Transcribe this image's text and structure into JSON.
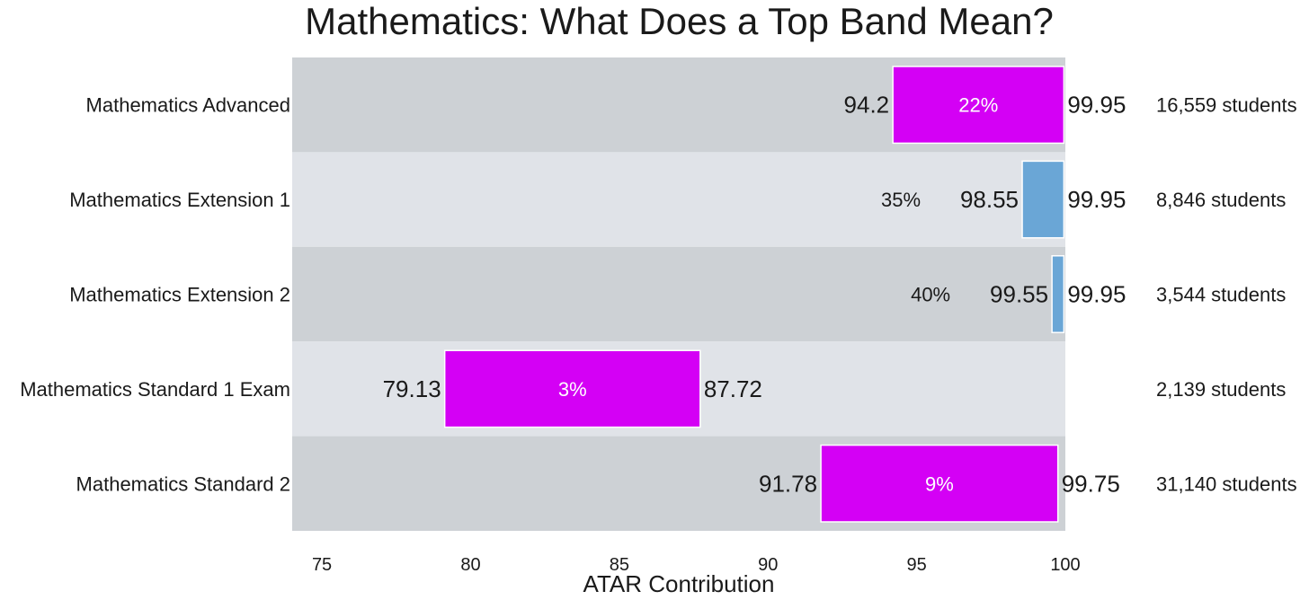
{
  "chart_data": {
    "type": "bar",
    "subtype": "floating-range",
    "title": "Mathematics: What Does a Top Band Mean?",
    "xlabel": "ATAR Contribution",
    "ylabel": "",
    "xlim": [
      74,
      100
    ],
    "xticks": [
      75,
      80,
      85,
      90,
      95,
      100
    ],
    "xtick_labels": [
      "75",
      "80",
      "85",
      "90",
      "95",
      "100"
    ],
    "grid": false,
    "legend": "none",
    "categories": [
      "Mathematics Advanced",
      "Mathematics Extension 1",
      "Mathematics Extension 2",
      "Mathematics Standard 1 Exam",
      "Mathematics Standard 2"
    ],
    "bands": [
      {
        "category": "Mathematics Advanced",
        "start": 94.2,
        "end": 99.95,
        "start_label": "94.2",
        "end_label": "99.95",
        "percent_label": "22%",
        "percent_inside": true,
        "color": "#d400f5",
        "students_label": "16,559 students"
      },
      {
        "category": "Mathematics Extension 1",
        "start": 98.55,
        "end": 99.95,
        "start_label": "98.55",
        "end_label": "99.95",
        "percent_label": "35%",
        "percent_inside": false,
        "color": "#6aa6d6",
        "students_label": "8,846 students"
      },
      {
        "category": "Mathematics Extension 2",
        "start": 99.55,
        "end": 99.95,
        "start_label": "99.55",
        "end_label": "99.95",
        "percent_label": "40%",
        "percent_inside": false,
        "color": "#6aa6d6",
        "students_label": "3,544 students"
      },
      {
        "category": "Mathematics Standard 1 Exam",
        "start": 79.13,
        "end": 87.72,
        "start_label": "79.13",
        "end_label": "87.72",
        "percent_label": "3%",
        "percent_inside": true,
        "color": "#d400f5",
        "students_label": "2,139 students"
      },
      {
        "category": "Mathematics Standard 2",
        "start": 91.78,
        "end": 99.75,
        "start_label": "91.78",
        "end_label": "99.75",
        "percent_label": "9%",
        "percent_inside": true,
        "color": "#d400f5",
        "students_label": "31,140 students"
      }
    ],
    "colors": {
      "row_dark": "#cdd1d5",
      "row_light": "#e0e3e8",
      "text": "#1a1a1a",
      "inside_text": "#ffffff"
    }
  }
}
